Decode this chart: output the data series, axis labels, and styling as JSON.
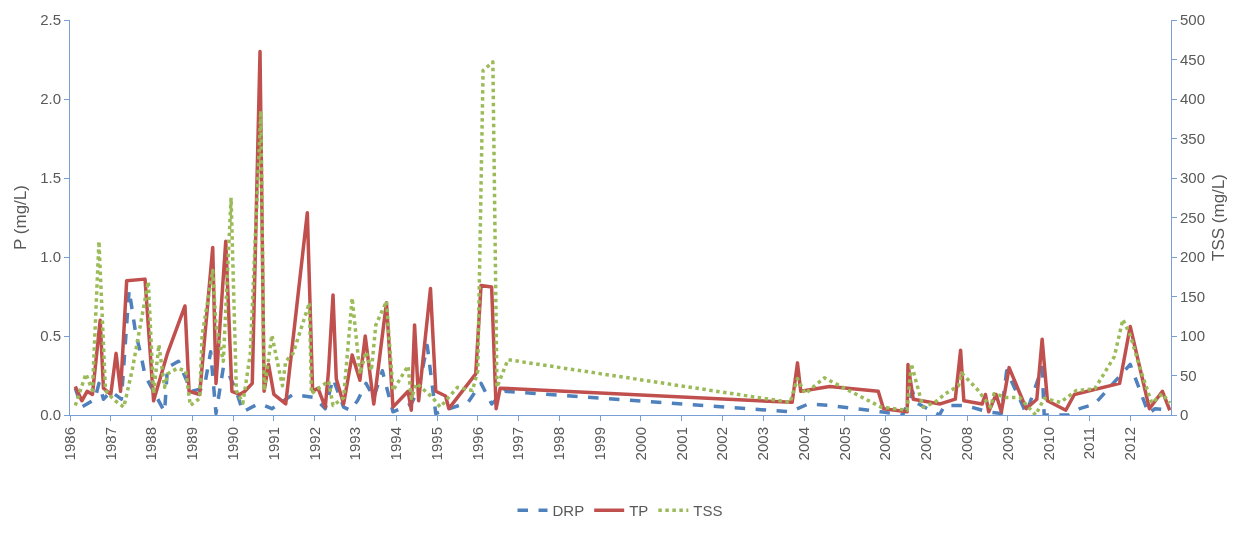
{
  "chart_data": {
    "type": "line",
    "ylabel": "P (mg/L)",
    "y2label": "TSS (mg/L)",
    "xlim": [
      1986,
      2013
    ],
    "xticks": [
      1986,
      1987,
      1988,
      1989,
      1990,
      1991,
      1992,
      1993,
      1994,
      1995,
      1996,
      1997,
      1998,
      1999,
      2000,
      2001,
      2002,
      2003,
      2004,
      2005,
      2006,
      2007,
      2008,
      2009,
      2010,
      2011,
      2012
    ],
    "ylim": [
      0,
      2.5
    ],
    "yticks": [
      {
        "value": 0,
        "label": "0.0"
      },
      {
        "value": 0.5,
        "label": "0.5"
      },
      {
        "value": 1,
        "label": "1.0"
      },
      {
        "value": 1.5,
        "label": "1.5"
      },
      {
        "value": 2,
        "label": "2.0"
      },
      {
        "value": 2.5,
        "label": "2.5"
      }
    ],
    "y2lim": [
      0,
      500
    ],
    "y2ticks": [
      0,
      50,
      100,
      150,
      200,
      250,
      300,
      350,
      400,
      450,
      500
    ],
    "grid": false,
    "legend": "bottom",
    "marker": "none",
    "series": [
      {
        "name": "DRP",
        "color": "#4f81bd",
        "line_style": "dashed",
        "x": [
          1986.13,
          1986.29,
          1986.61,
          1986.71,
          1986.82,
          1987.0,
          1987.26,
          1987.45,
          1987.61,
          1987.74,
          1987.84,
          1988.05,
          1988.32,
          1988.39,
          1988.66,
          1988.84,
          1988.97,
          1989.29,
          1989.45,
          1989.58,
          1989.76,
          1989.89,
          1990.08,
          1990.24,
          1990.61,
          1990.76,
          1990.95,
          1991.47,
          1992.0,
          1992.26,
          1992.45,
          1992.71,
          1992.87,
          1993.05,
          1993.26,
          1993.45,
          1993.66,
          1993.92,
          1994.37,
          1994.55,
          1994.76,
          1994.97,
          1995.76,
          1996.08,
          1996.34,
          1996.66,
          2003.66,
          2004.11,
          2004.63,
          2005.89,
          2006.42,
          2006.66,
          2006.74,
          2007.32,
          2007.45,
          2007.97,
          2008.5,
          2008.84,
          2008.97,
          2009.45,
          2009.84,
          2009.89,
          2010.5,
          2010.76,
          2011.13,
          2012.0,
          2012.45,
          2012.61,
          2012.97
        ],
        "values": [
          0.17,
          0.05,
          0.1,
          0.2,
          0.1,
          0.15,
          0.1,
          0.79,
          0.52,
          0.38,
          0.25,
          0.15,
          0.02,
          0.3,
          0.34,
          0.23,
          0.15,
          0.17,
          0.4,
          0.01,
          0.3,
          0.26,
          0.15,
          0.02,
          0.07,
          0.06,
          0.04,
          0.13,
          0.11,
          0.04,
          0.23,
          0.05,
          0.03,
          0.09,
          0.2,
          0.11,
          0.28,
          0.02,
          0.07,
          0.17,
          0.44,
          0.01,
          0.08,
          0.2,
          0.07,
          0.15,
          0.02,
          0.07,
          0.06,
          0.02,
          0.0,
          0.15,
          0.08,
          0.0,
          0.06,
          0.06,
          0.02,
          0.01,
          0.28,
          0.01,
          0.3,
          0.0,
          0.0,
          0.04,
          0.07,
          0.32,
          0.01,
          0.04,
          0.03
        ]
      },
      {
        "name": "TP",
        "color": "#c0504d",
        "line_style": "solid",
        "x": [
          1986.13,
          1986.29,
          1986.42,
          1986.55,
          1986.74,
          1986.82,
          1987.0,
          1987.13,
          1987.24,
          1987.39,
          1987.84,
          1988.05,
          1988.39,
          1988.82,
          1988.92,
          1989.18,
          1989.5,
          1989.58,
          1989.82,
          1989.97,
          1990.16,
          1990.29,
          1990.47,
          1990.66,
          1990.76,
          1990.87,
          1991.0,
          1991.29,
          1991.82,
          1991.95,
          1992.08,
          1992.26,
          1992.34,
          1992.45,
          1992.53,
          1992.71,
          1992.92,
          1993.11,
          1993.24,
          1993.45,
          1993.76,
          1993.92,
          1994.29,
          1994.37,
          1994.45,
          1994.55,
          1994.84,
          1994.97,
          1995.21,
          1995.29,
          1995.95,
          1996.08,
          1996.34,
          1996.45,
          1996.55,
          2003.71,
          2003.84,
          2003.92,
          2004.63,
          2005.82,
          2005.95,
          2006.53,
          2006.55,
          2006.68,
          2007.34,
          2007.71,
          2007.84,
          2007.92,
          2008.37,
          2008.45,
          2008.53,
          2008.71,
          2008.84,
          2009.03,
          2009.45,
          2009.71,
          2009.84,
          2009.97,
          2010.42,
          2010.63,
          2011.74,
          2012.0,
          2012.47,
          2012.79,
          2012.97
        ],
        "values": [
          0.18,
          0.09,
          0.15,
          0.13,
          0.6,
          0.17,
          0.13,
          0.39,
          0.15,
          0.85,
          0.86,
          0.09,
          0.39,
          0.69,
          0.15,
          0.13,
          1.06,
          0.2,
          1.1,
          0.15,
          0.13,
          0.15,
          0.2,
          2.3,
          0.15,
          0.32,
          0.13,
          0.07,
          1.28,
          0.15,
          0.17,
          0.05,
          0.28,
          0.76,
          0.23,
          0.07,
          0.38,
          0.22,
          0.5,
          0.07,
          0.71,
          0.05,
          0.15,
          0.03,
          0.57,
          0.09,
          0.8,
          0.15,
          0.12,
          0.04,
          0.26,
          0.82,
          0.81,
          0.04,
          0.17,
          0.08,
          0.33,
          0.15,
          0.18,
          0.15,
          0.04,
          0.02,
          0.32,
          0.1,
          0.07,
          0.1,
          0.41,
          0.09,
          0.07,
          0.13,
          0.02,
          0.13,
          0.02,
          0.3,
          0.04,
          0.1,
          0.48,
          0.09,
          0.03,
          0.13,
          0.2,
          0.56,
          0.04,
          0.15,
          0.03
        ]
      },
      {
        "name": "TSS",
        "color": "#9bbb59",
        "line_style": "dotted",
        "axis": "y2",
        "x": [
          1986.13,
          1986.39,
          1986.55,
          1986.71,
          1986.87,
          1987.08,
          1987.32,
          1987.53,
          1987.92,
          1988.05,
          1988.18,
          1988.32,
          1988.39,
          1988.63,
          1988.84,
          1988.95,
          1989.18,
          1989.24,
          1989.5,
          1989.58,
          1989.76,
          1989.95,
          1990.08,
          1990.24,
          1990.42,
          1990.68,
          1990.76,
          1990.95,
          1991.13,
          1991.21,
          1991.29,
          1991.47,
          1991.87,
          1991.92,
          1992.18,
          1992.34,
          1992.45,
          1992.71,
          1992.92,
          1993.11,
          1993.26,
          1993.39,
          1993.5,
          1993.76,
          1993.92,
          1994.11,
          1994.29,
          1994.37,
          1994.5,
          1994.89,
          1995.08,
          1995.5,
          1995.87,
          1996.0,
          1996.13,
          1996.37,
          1996.47,
          1996.74,
          2003.66,
          2003.84,
          2004.03,
          2004.5,
          2005.89,
          2006.53,
          2006.63,
          2006.92,
          2007.21,
          2007.47,
          2007.79,
          2007.87,
          2008.24,
          2008.58,
          2008.66,
          2008.97,
          2009.29,
          2009.68,
          2009.89,
          2010.29,
          2010.68,
          2011.13,
          2011.61,
          2011.82,
          2012.0,
          2012.26,
          2012.53,
          2012.79,
          2012.97
        ],
        "values": [
          12,
          52,
          31,
          220,
          31,
          19,
          10,
          58,
          169,
          27,
          89,
          35,
          52,
          59,
          56,
          12,
          21,
          101,
          183,
          114,
          68,
          275,
          31,
          15,
          77,
          385,
          31,
          101,
          56,
          37,
          68,
          78,
          142,
          27,
          37,
          43,
          12,
          22,
          148,
          52,
          80,
          56,
          114,
          144,
          31,
          47,
          62,
          21,
          40,
          22,
          10,
          35,
          31,
          56,
          436,
          447,
          35,
          70,
          16,
          46,
          27,
          47,
          10,
          6,
          65,
          10,
          16,
          27,
          37,
          53,
          33,
          10,
          27,
          22,
          22,
          0,
          21,
          16,
          31,
          33,
          74,
          121,
          101,
          56,
          15,
          27,
          15
        ]
      }
    ]
  }
}
